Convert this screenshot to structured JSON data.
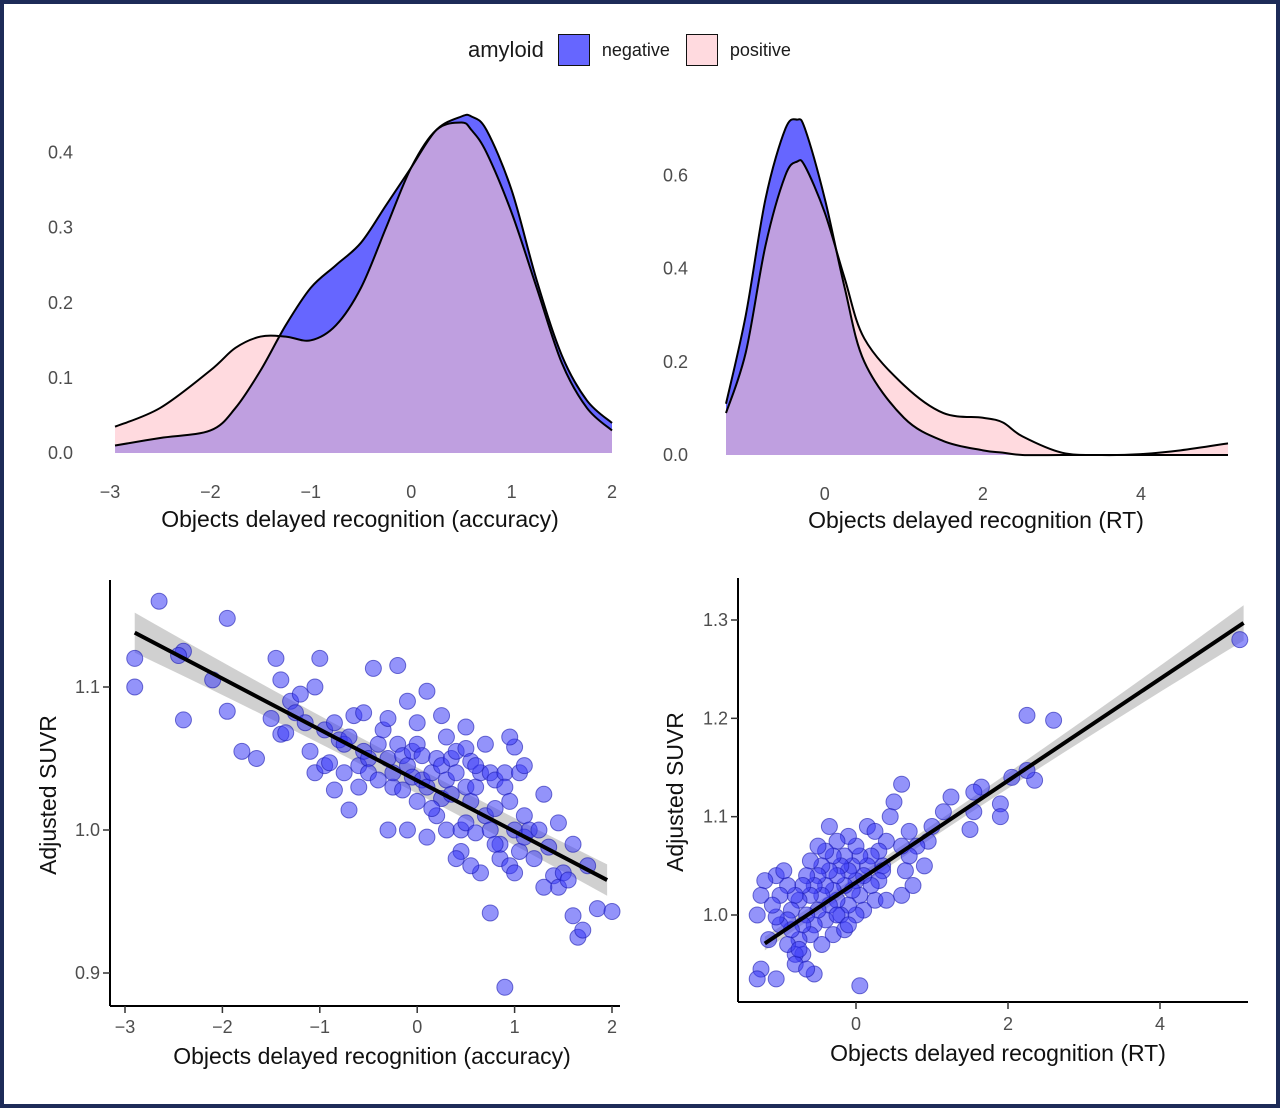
{
  "legend": {
    "title": "amyloid",
    "items": [
      {
        "label": "negative",
        "color": "#6666ff"
      },
      {
        "label": "positive",
        "color": "#ffdadf"
      }
    ]
  },
  "colors": {
    "negative": "#6666ff",
    "positive": "#ffdadf",
    "overlap": "#bf9fe0",
    "points": "#3a3af5",
    "frame": "#1d2b58"
  },
  "chart_data": [
    {
      "type": "area",
      "xlabel": "Objects delayed recognition (accuracy)",
      "ylabel": "",
      "xlim": [
        -3,
        2
      ],
      "ylim": [
        0,
        0.45
      ],
      "xticks": [
        "−3",
        "−2",
        "−1",
        "0",
        "1",
        "2"
      ],
      "yticks": [
        "0.0",
        "0.1",
        "0.2",
        "0.3",
        "0.4"
      ],
      "x": [
        -2.95,
        -2.5,
        -2.0,
        -1.75,
        -1.5,
        -1.25,
        -1.0,
        -0.75,
        -0.5,
        -0.25,
        0.0,
        0.25,
        0.5,
        0.6,
        0.75,
        1.0,
        1.25,
        1.5,
        1.75,
        2.0
      ],
      "series": [
        {
          "name": "negative",
          "values": [
            0.01,
            0.02,
            0.03,
            0.06,
            0.11,
            0.17,
            0.22,
            0.25,
            0.28,
            0.33,
            0.38,
            0.43,
            0.448,
            0.448,
            0.43,
            0.35,
            0.23,
            0.13,
            0.07,
            0.04
          ]
        },
        {
          "name": "positive",
          "values": [
            0.035,
            0.06,
            0.11,
            0.14,
            0.155,
            0.155,
            0.15,
            0.17,
            0.22,
            0.3,
            0.38,
            0.43,
            0.44,
            0.43,
            0.4,
            0.32,
            0.22,
            0.12,
            0.06,
            0.03
          ]
        }
      ]
    },
    {
      "type": "area",
      "xlabel": "Objects delayed recognition (RT)",
      "ylabel": "",
      "xlim": [
        -1.25,
        5.1
      ],
      "ylim": [
        0,
        0.73
      ],
      "xticks": [
        "0",
        "2",
        "4"
      ],
      "yticks": [
        "0.0",
        "0.2",
        "0.4",
        "0.6"
      ],
      "x": [
        -1.25,
        -1.0,
        -0.75,
        -0.5,
        -0.35,
        -0.25,
        0.0,
        0.25,
        0.5,
        1.0,
        1.5,
        2.0,
        2.25,
        2.5,
        3.0,
        3.5,
        4.0,
        4.5,
        5.1
      ],
      "series": [
        {
          "name": "negative",
          "values": [
            0.11,
            0.3,
            0.55,
            0.7,
            0.72,
            0.7,
            0.55,
            0.36,
            0.2,
            0.08,
            0.03,
            0.01,
            0.005,
            0.0,
            0.0,
            0.0,
            0.0,
            0.0,
            0.0
          ]
        },
        {
          "name": "positive",
          "values": [
            0.09,
            0.22,
            0.45,
            0.6,
            0.63,
            0.62,
            0.52,
            0.38,
            0.25,
            0.15,
            0.09,
            0.08,
            0.07,
            0.04,
            0.005,
            0.0,
            0.002,
            0.01,
            0.025
          ]
        }
      ]
    },
    {
      "type": "scatter",
      "xlabel": "Objects delayed recognition (accuracy)",
      "ylabel": "Adjusted SUVR",
      "xlim": [
        -3.1,
        2.1
      ],
      "ylim": [
        0.875,
        1.175
      ],
      "xticks": [
        "−3",
        "−2",
        "−1",
        "0",
        "1",
        "2"
      ],
      "yticks": [
        "0.9",
        "1.0",
        "1.1"
      ],
      "fit": {
        "x": [
          -2.9,
          1.95
        ],
        "y": [
          1.138,
          0.965
        ],
        "ci_half_width": [
          0.014,
          0.006,
          0.011
        ]
      },
      "points": [
        [
          -2.65,
          1.16
        ],
        [
          -2.9,
          1.12
        ],
        [
          -2.9,
          1.1
        ],
        [
          -1.95,
          1.148
        ],
        [
          -2.4,
          1.125
        ],
        [
          -2.45,
          1.122
        ],
        [
          -2.4,
          1.077
        ],
        [
          -2.1,
          1.105
        ],
        [
          -1.95,
          1.083
        ],
        [
          -1.8,
          1.055
        ],
        [
          -1.65,
          1.05
        ],
        [
          -1.5,
          1.078
        ],
        [
          -1.45,
          1.12
        ],
        [
          -1.4,
          1.105
        ],
        [
          -1.4,
          1.067
        ],
        [
          -1.35,
          1.068
        ],
        [
          -1.3,
          1.09
        ],
        [
          -1.25,
          1.082
        ],
        [
          -1.2,
          1.095
        ],
        [
          -1.15,
          1.075
        ],
        [
          -1.1,
          1.055
        ],
        [
          -1.05,
          1.04
        ],
        [
          -1.05,
          1.1
        ],
        [
          -1.0,
          1.12
        ],
        [
          -0.95,
          1.07
        ],
        [
          -0.95,
          1.045
        ],
        [
          -0.9,
          1.047
        ],
        [
          -0.85,
          1.075
        ],
        [
          -0.85,
          1.028
        ],
        [
          -0.8,
          1.063
        ],
        [
          -0.75,
          1.06
        ],
        [
          -0.75,
          1.04
        ],
        [
          -0.7,
          1.065
        ],
        [
          -0.7,
          1.014
        ],
        [
          -0.65,
          1.08
        ],
        [
          -0.6,
          1.045
        ],
        [
          -0.6,
          1.03
        ],
        [
          -0.55,
          1.082
        ],
        [
          -0.55,
          1.055
        ],
        [
          -0.5,
          1.05
        ],
        [
          -0.5,
          1.04
        ],
        [
          -0.45,
          1.113
        ],
        [
          -0.4,
          1.06
        ],
        [
          -0.4,
          1.035
        ],
        [
          -0.35,
          1.07
        ],
        [
          -0.3,
          1.078
        ],
        [
          -0.3,
          1.05
        ],
        [
          -0.25,
          1.03
        ],
        [
          -0.25,
          1.04
        ],
        [
          -0.2,
          1.115
        ],
        [
          -0.2,
          1.06
        ],
        [
          -0.15,
          1.052
        ],
        [
          -0.15,
          1.028
        ],
        [
          -0.1,
          1.09
        ],
        [
          -0.1,
          1.045
        ],
        [
          -0.05,
          1.055
        ],
        [
          -0.05,
          1.037
        ],
        [
          0.0,
          1.075
        ],
        [
          0.0,
          1.06
        ],
        [
          0.05,
          1.052
        ],
        [
          0.05,
          1.035
        ],
        [
          0.1,
          1.097
        ],
        [
          0.1,
          1.03
        ],
        [
          0.15,
          1.04
        ],
        [
          0.2,
          1.05
        ],
        [
          0.2,
          1.01
        ],
        [
          0.25,
          1.045
        ],
        [
          0.25,
          1.022
        ],
        [
          0.3,
          1.0
        ],
        [
          0.3,
          1.035
        ],
        [
          0.3,
          1.065
        ],
        [
          0.35,
          1.05
        ],
        [
          0.35,
          1.025
        ],
        [
          0.4,
          1.055
        ],
        [
          0.4,
          1.04
        ],
        [
          0.45,
          0.985
        ],
        [
          0.45,
          1.0
        ],
        [
          0.5,
          1.072
        ],
        [
          0.5,
          1.057
        ],
        [
          0.5,
          1.03
        ],
        [
          0.5,
          1.005
        ],
        [
          0.55,
          1.048
        ],
        [
          0.55,
          1.02
        ],
        [
          0.6,
          1.03
        ],
        [
          0.6,
          0.998
        ],
        [
          0.65,
          1.04
        ],
        [
          0.65,
          0.97
        ],
        [
          0.7,
          1.06
        ],
        [
          0.7,
          1.01
        ],
        [
          0.75,
          1.04
        ],
        [
          0.75,
          1.0
        ],
        [
          0.8,
          1.035
        ],
        [
          0.8,
          1.015
        ],
        [
          0.85,
          0.98
        ],
        [
          0.85,
          0.99
        ],
        [
          0.9,
          1.04
        ],
        [
          0.9,
          1.03
        ],
        [
          0.95,
          1.02
        ],
        [
          0.95,
          0.975
        ],
        [
          1.0,
          1.058
        ],
        [
          1.0,
          1.0
        ],
        [
          1.05,
          1.04
        ],
        [
          1.05,
          0.985
        ],
        [
          1.1,
          1.01
        ],
        [
          1.1,
          0.995
        ],
        [
          1.15,
          1.0
        ],
        [
          1.2,
          0.98
        ],
        [
          1.25,
          1.0
        ],
        [
          1.3,
          1.025
        ],
        [
          1.35,
          0.988
        ],
        [
          1.4,
          0.968
        ],
        [
          1.45,
          0.96
        ],
        [
          1.5,
          0.97
        ],
        [
          1.55,
          0.965
        ],
        [
          1.6,
          0.94
        ],
        [
          1.65,
          0.925
        ],
        [
          1.75,
          0.975
        ],
        [
          1.85,
          0.945
        ],
        [
          2.0,
          0.943
        ],
        [
          0.75,
          0.942
        ],
        [
          0.9,
          0.89
        ],
        [
          0.1,
          0.995
        ],
        [
          -0.1,
          1.0
        ],
        [
          0.25,
          1.08
        ],
        [
          0.4,
          0.98
        ],
        [
          0.55,
          0.975
        ],
        [
          0.95,
          1.065
        ],
        [
          1.1,
          1.045
        ],
        [
          1.3,
          0.96
        ],
        [
          1.45,
          1.005
        ],
        [
          1.6,
          0.99
        ],
        [
          1.7,
          0.93
        ],
        [
          -0.3,
          1.0
        ],
        [
          0.0,
          1.02
        ],
        [
          0.15,
          1.015
        ],
        [
          0.6,
          1.045
        ],
        [
          0.8,
          0.99
        ],
        [
          1.0,
          0.97
        ]
      ]
    },
    {
      "type": "scatter",
      "xlabel": "Objects delayed recognition (RT)",
      "ylabel": "Adjusted SUVR",
      "xlim": [
        -1.4,
        5.1
      ],
      "ylim": [
        0.92,
        1.34
      ],
      "xticks": [
        "0",
        "2",
        "4"
      ],
      "yticks": [
        "1.0",
        "1.1",
        "1.2",
        "1.3"
      ],
      "fit": {
        "x": [
          -1.2,
          5.1
        ],
        "y": [
          0.971,
          1.297
        ],
        "ci_half_width": [
          0.007,
          0.003,
          0.018
        ]
      },
      "points": [
        [
          5.05,
          1.28
        ],
        [
          2.25,
          1.203
        ],
        [
          2.6,
          1.198
        ],
        [
          2.35,
          1.137
        ],
        [
          2.25,
          1.147
        ],
        [
          2.05,
          1.14
        ],
        [
          1.9,
          1.113
        ],
        [
          1.9,
          1.1
        ],
        [
          1.65,
          1.13
        ],
        [
          1.55,
          1.125
        ],
        [
          1.55,
          1.105
        ],
        [
          1.5,
          1.087
        ],
        [
          1.25,
          1.12
        ],
        [
          1.15,
          1.105
        ],
        [
          1.0,
          1.09
        ],
        [
          0.95,
          1.075
        ],
        [
          0.8,
          1.07
        ],
        [
          0.7,
          1.06
        ],
        [
          0.65,
          1.045
        ],
        [
          0.6,
          1.133
        ],
        [
          0.6,
          1.07
        ],
        [
          0.6,
          1.02
        ],
        [
          0.5,
          1.115
        ],
        [
          0.45,
          1.1
        ],
        [
          0.4,
          1.075
        ],
        [
          0.35,
          1.05
        ],
        [
          0.35,
          1.045
        ],
        [
          0.3,
          1.065
        ],
        [
          0.3,
          1.035
        ],
        [
          0.25,
          1.015
        ],
        [
          0.2,
          1.06
        ],
        [
          0.2,
          1.03
        ],
        [
          0.15,
          1.05
        ],
        [
          0.15,
          1.09
        ],
        [
          0.1,
          1.04
        ],
        [
          0.1,
          1.005
        ],
        [
          0.05,
          1.06
        ],
        [
          0.05,
          1.02
        ],
        [
          0.0,
          1.07
        ],
        [
          0.0,
          1.035
        ],
        [
          0.0,
          1.0
        ],
        [
          0.05,
          0.928
        ],
        [
          -0.05,
          1.05
        ],
        [
          -0.05,
          1.025
        ],
        [
          -0.1,
          1.08
        ],
        [
          -0.1,
          1.045
        ],
        [
          -0.1,
          1.01
        ],
        [
          -0.15,
          1.06
        ],
        [
          -0.15,
          1.03
        ],
        [
          -0.2,
          1.05
        ],
        [
          -0.2,
          1.0
        ],
        [
          -0.25,
          1.075
        ],
        [
          -0.25,
          1.04
        ],
        [
          -0.25,
          1.015
        ],
        [
          -0.3,
          1.06
        ],
        [
          -0.3,
          1.025
        ],
        [
          -0.3,
          0.98
        ],
        [
          -0.35,
          1.045
        ],
        [
          -0.35,
          1.01
        ],
        [
          -0.4,
          1.065
        ],
        [
          -0.4,
          1.03
        ],
        [
          -0.4,
          0.995
        ],
        [
          -0.45,
          1.05
        ],
        [
          -0.45,
          1.02
        ],
        [
          -0.45,
          0.97
        ],
        [
          -0.5,
          1.04
        ],
        [
          -0.5,
          1.005
        ],
        [
          -0.55,
          1.03
        ],
        [
          -0.55,
          0.99
        ],
        [
          -0.6,
          1.055
        ],
        [
          -0.6,
          1.02
        ],
        [
          -0.6,
          0.98
        ],
        [
          -0.65,
          1.04
        ],
        [
          -0.65,
          1.0
        ],
        [
          -0.7,
          1.03
        ],
        [
          -0.7,
          0.99
        ],
        [
          -0.7,
          0.96
        ],
        [
          -0.75,
          1.015
        ],
        [
          -0.75,
          0.975
        ],
        [
          -0.8,
          1.02
        ],
        [
          -0.8,
          0.96
        ],
        [
          -0.8,
          0.95
        ],
        [
          -0.85,
          1.005
        ],
        [
          -0.85,
          0.985
        ],
        [
          -0.9,
          1.03
        ],
        [
          -0.9,
          0.995
        ],
        [
          -0.9,
          0.97
        ],
        [
          -1.0,
          1.02
        ],
        [
          -1.0,
          0.99
        ],
        [
          -1.05,
          1.04
        ],
        [
          -1.05,
          0.998
        ],
        [
          -1.1,
          1.01
        ],
        [
          -1.15,
          0.975
        ],
        [
          -1.2,
          1.035
        ],
        [
          -1.25,
          1.02
        ],
        [
          -1.25,
          0.945
        ],
        [
          -1.3,
          1.0
        ],
        [
          -1.3,
          0.935
        ],
        [
          -1.05,
          0.935
        ],
        [
          -0.55,
          0.94
        ],
        [
          -0.65,
          0.945
        ],
        [
          -0.75,
          0.965
        ],
        [
          -0.25,
          1.0
        ],
        [
          -0.15,
          0.985
        ],
        [
          0.4,
          1.015
        ],
        [
          0.7,
          1.085
        ],
        [
          0.9,
          1.05
        ],
        [
          -0.5,
          1.07
        ],
        [
          -0.35,
          1.09
        ],
        [
          0.25,
          1.085
        ],
        [
          0.75,
          1.03
        ],
        [
          -0.95,
          1.045
        ],
        [
          -0.1,
          0.99
        ]
      ]
    }
  ]
}
